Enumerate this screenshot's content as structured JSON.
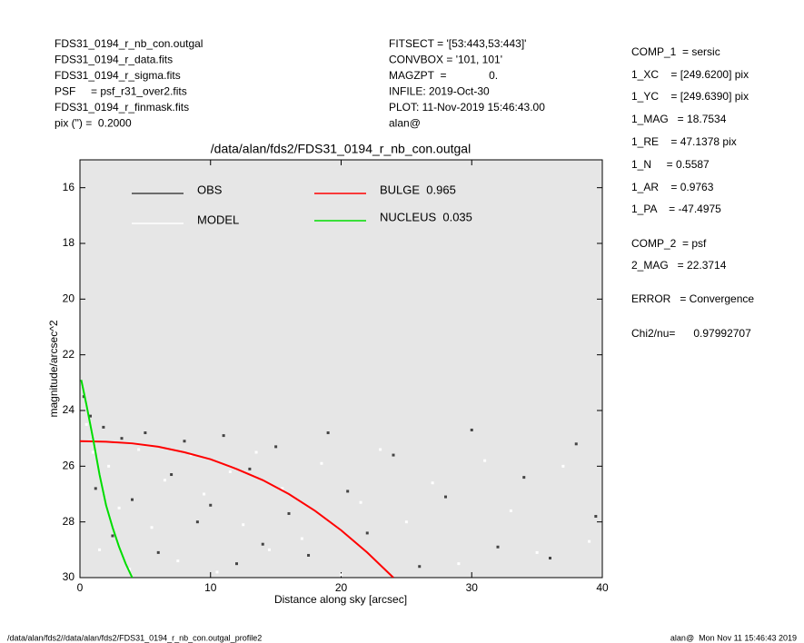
{
  "header": {
    "left": [
      "FDS31_0194_r_nb_con.outgal",
      "FDS31_0194_r_data.fits",
      "FDS31_0194_r_sigma.fits",
      "PSF     = psf_r31_over2.fits",
      "FDS31_0194_r_finmask.fits",
      "pix (\") =  0.2000"
    ],
    "middle": [
      "FITSECT = '[53:443,53:443]'",
      "CONVBOX = '101, 101'",
      "MAGZPT  =              0.",
      "INFILE: 2019-Oct-30",
      "PLOT: 11-Nov-2019 15:46:43.00",
      "alan@"
    ],
    "right": [
      "COMP_1  = sersic",
      "1_XC    = [249.6200] pix",
      "1_YC    = [249.6390] pix",
      "1_MAG   = 18.7534",
      "1_RE    = 47.1378 pix",
      "1_N     = 0.5587",
      "1_AR    = 0.9763",
      "1_PA    = -47.4975",
      "COMP_2  = psf",
      "2_MAG   = 22.3714",
      "ERROR   = Convergence",
      "Chi2/nu=      0.97992707"
    ]
  },
  "footer": {
    "left": "/data/alan/fds2//data/alan/fds2/FDS31_0194_r_nb_con.outgal_profile2",
    "right": "alan@  Mon Nov 11 15:46:43 2019"
  },
  "chart_data": {
    "type": "scatter",
    "title": "/data/alan/fds2/FDS31_0194_r_nb_con.outgal",
    "x_label": "Distance along sky [arcsec]",
    "y_label": "magnitude/arcsec^2",
    "xlim": [
      0,
      40
    ],
    "ylim": [
      30,
      15
    ],
    "xticks": [
      0,
      10,
      20,
      30,
      40
    ],
    "yticks": [
      16,
      18,
      20,
      22,
      24,
      26,
      28,
      30
    ],
    "grid": false,
    "series": [
      {
        "name": "OBS",
        "color": "#444444",
        "style": "points",
        "x": [
          0.3,
          0.8,
          1.2,
          1.8,
          2.5,
          3.2,
          4.0,
          5.0,
          6.0,
          7.0,
          8.0,
          9.0,
          10.0,
          11.0,
          12.0,
          13.0,
          14.0,
          15.0,
          16.0,
          17.5,
          19.0,
          20.5,
          22.0,
          24.0,
          26.0,
          28.0,
          30.0,
          32.0,
          34.0,
          36.0,
          38.0,
          39.5
        ],
        "values": [
          23.5,
          24.2,
          26.8,
          24.6,
          28.5,
          25.0,
          27.2,
          24.8,
          29.1,
          26.3,
          25.1,
          28.0,
          27.4,
          24.9,
          29.5,
          26.1,
          28.8,
          25.3,
          27.7,
          29.2,
          24.8,
          26.9,
          28.4,
          25.6,
          29.6,
          27.1,
          24.7,
          28.9,
          26.4,
          29.3,
          25.2,
          27.8
        ]
      },
      {
        "name": "MODEL",
        "color": "#ffffff",
        "style": "points",
        "x": [
          0.5,
          1.0,
          1.5,
          2.2,
          3.0,
          3.8,
          4.5,
          5.5,
          6.5,
          7.5,
          8.5,
          9.5,
          10.5,
          11.5,
          12.5,
          13.5,
          14.5,
          15.5,
          17.0,
          18.5,
          20.0,
          21.5,
          23.0,
          25.0,
          27.0,
          29.0,
          31.0,
          33.0,
          35.0,
          37.0,
          39.0
        ],
        "values": [
          24.5,
          25.5,
          29.0,
          26.0,
          27.5,
          29.7,
          25.4,
          28.2,
          26.5,
          29.4,
          25.6,
          27.0,
          29.8,
          26.2,
          28.1,
          25.5,
          29.0,
          26.8,
          28.6,
          25.9,
          29.9,
          27.3,
          25.4,
          28.0,
          26.6,
          29.5,
          25.8,
          27.6,
          29.1,
          26.0,
          28.7
        ]
      },
      {
        "name": "BULGE  0.965",
        "color": "#ff0000",
        "style": "line",
        "x": [
          0,
          2,
          4,
          6,
          8,
          10,
          12,
          14,
          16,
          18,
          20,
          22,
          24
        ],
        "values": [
          25.1,
          25.12,
          25.18,
          25.3,
          25.5,
          25.75,
          26.1,
          26.5,
          27.0,
          27.6,
          28.3,
          29.1,
          30.0
        ]
      },
      {
        "name": "NUCLEUS  0.035",
        "color": "#00dd00",
        "style": "line",
        "x": [
          0.1,
          0.5,
          1.0,
          1.5,
          2.0,
          2.5,
          3.0,
          3.5,
          4.0
        ],
        "values": [
          22.9,
          23.8,
          25.0,
          26.3,
          27.4,
          28.2,
          28.9,
          29.5,
          30.0
        ]
      }
    ]
  }
}
